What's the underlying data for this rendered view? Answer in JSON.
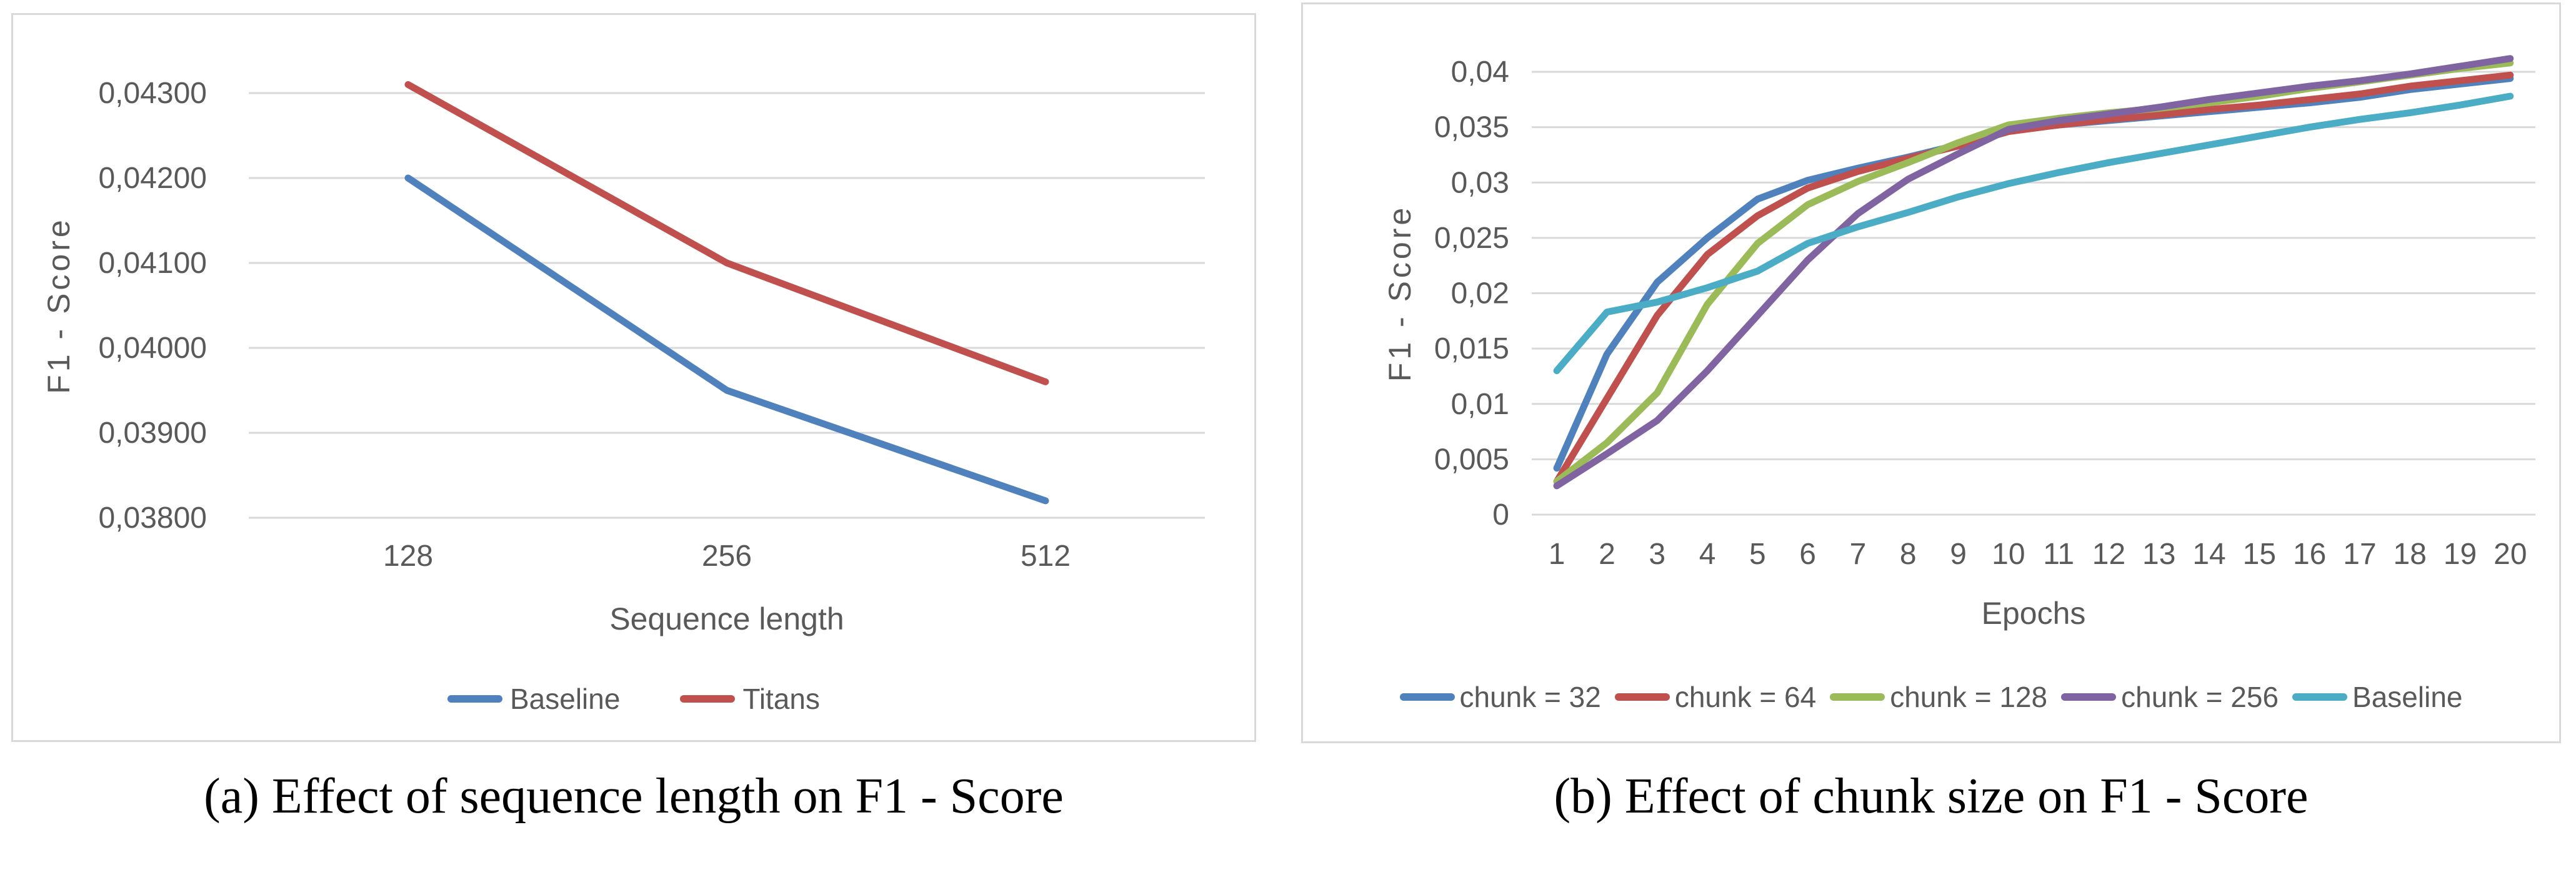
{
  "figure": {
    "background": "#ffffff",
    "grid_color": "#D9D9D9",
    "axis_text_color": "#595959"
  },
  "chart_data": [
    {
      "type": "line",
      "caption": "(a) Effect of sequence length on F1 - Score",
      "title": "",
      "xlabel": "Sequence length",
      "ylabel": "F1 - Score",
      "categories": [
        "128",
        "256",
        "512"
      ],
      "ylim": [
        0.038,
        0.043
      ],
      "grid": true,
      "legend_position": "bottom",
      "y_ticks": [
        {
          "value": 0.038,
          "label": "0,03800"
        },
        {
          "value": 0.039,
          "label": "0,03900"
        },
        {
          "value": 0.04,
          "label": "0,04000"
        },
        {
          "value": 0.041,
          "label": "0,04100"
        },
        {
          "value": 0.042,
          "label": "0,04200"
        },
        {
          "value": 0.043,
          "label": "0,04300"
        }
      ],
      "series": [
        {
          "name": "Baseline",
          "color": "#4F81BD",
          "values": [
            0.042,
            0.0395,
            0.0382
          ]
        },
        {
          "name": "Titans",
          "color": "#C0504D",
          "values": [
            0.0431,
            0.041,
            0.0396
          ]
        }
      ]
    },
    {
      "type": "line",
      "caption": "(b) Effect of chunk size on F1 - Score",
      "title": "",
      "xlabel": "Epochs",
      "ylabel": "F1 - Score",
      "categories": [
        "1",
        "2",
        "3",
        "4",
        "5",
        "6",
        "7",
        "8",
        "9",
        "10",
        "11",
        "12",
        "13",
        "14",
        "15",
        "16",
        "17",
        "18",
        "19",
        "20"
      ],
      "ylim": [
        0,
        0.04
      ],
      "grid": true,
      "legend_position": "bottom",
      "y_ticks": [
        {
          "value": 0,
          "label": "0"
        },
        {
          "value": 0.005,
          "label": "0,005"
        },
        {
          "value": 0.01,
          "label": "0,01"
        },
        {
          "value": 0.015,
          "label": "0,015"
        },
        {
          "value": 0.02,
          "label": "0,02"
        },
        {
          "value": 0.025,
          "label": "0,025"
        },
        {
          "value": 0.03,
          "label": "0,03"
        },
        {
          "value": 0.035,
          "label": "0,035"
        },
        {
          "value": 0.04,
          "label": "0,04"
        }
      ],
      "series": [
        {
          "name": "chunk = 32",
          "color": "#4F81BD",
          "values": [
            0.0042,
            0.0145,
            0.021,
            0.025,
            0.0285,
            0.0302,
            0.0313,
            0.0323,
            0.0334,
            0.0347,
            0.0352,
            0.0356,
            0.036,
            0.0364,
            0.0368,
            0.0372,
            0.0377,
            0.0384,
            0.0389,
            0.0394
          ]
        },
        {
          "name": "chunk = 64",
          "color": "#C0504D",
          "values": [
            0.003,
            0.0105,
            0.018,
            0.0235,
            0.027,
            0.0295,
            0.031,
            0.0322,
            0.0333,
            0.0346,
            0.0352,
            0.0357,
            0.0361,
            0.0366,
            0.037,
            0.0375,
            0.038,
            0.0387,
            0.0392,
            0.0397
          ]
        },
        {
          "name": "chunk = 128",
          "color": "#9BBB59",
          "values": [
            0.003,
            0.0065,
            0.011,
            0.019,
            0.0245,
            0.028,
            0.0301,
            0.0318,
            0.0336,
            0.0352,
            0.0358,
            0.0363,
            0.0367,
            0.0372,
            0.0378,
            0.0385,
            0.0391,
            0.0397,
            0.0403,
            0.0408
          ]
        },
        {
          "name": "chunk = 256",
          "color": "#8064A2",
          "values": [
            0.0026,
            0.0055,
            0.0085,
            0.013,
            0.018,
            0.023,
            0.0272,
            0.0303,
            0.0326,
            0.0348,
            0.0356,
            0.0362,
            0.0368,
            0.0375,
            0.0381,
            0.0387,
            0.0392,
            0.0398,
            0.0405,
            0.0412
          ]
        },
        {
          "name": "Baseline",
          "color": "#4BACC6",
          "values": [
            0.013,
            0.0183,
            0.0192,
            0.0205,
            0.022,
            0.0245,
            0.026,
            0.0273,
            0.0287,
            0.0299,
            0.0309,
            0.0318,
            0.0326,
            0.0334,
            0.0342,
            0.035,
            0.0357,
            0.0363,
            0.037,
            0.0378
          ]
        }
      ]
    }
  ]
}
